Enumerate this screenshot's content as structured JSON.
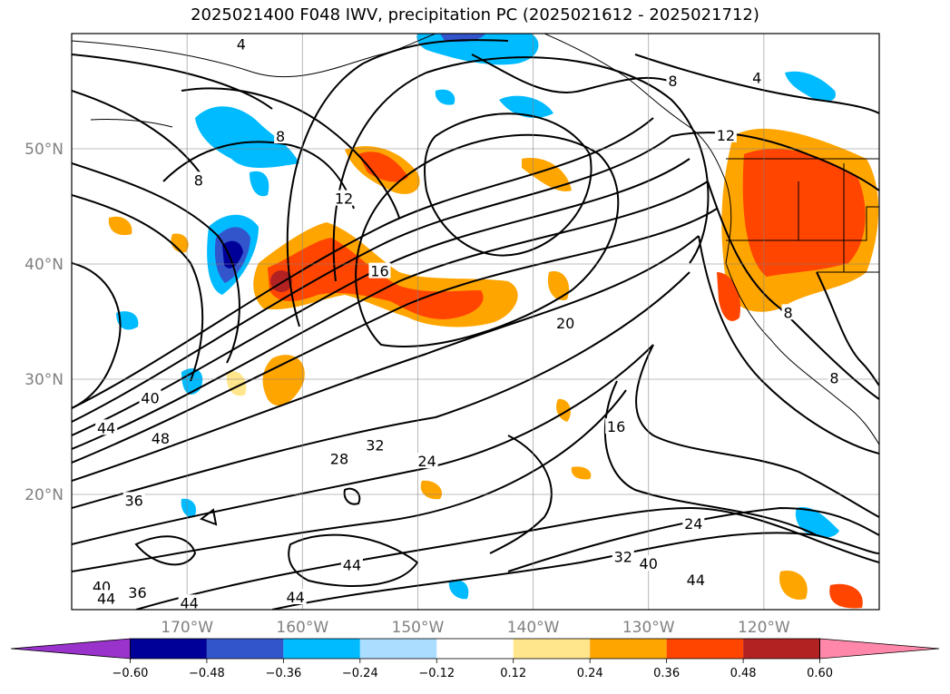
{
  "chart_data": {
    "type": "heatmap",
    "title": "2025021400 F048 IWV, precipitation PC (2025021612 - 2025021712)",
    "xlabel": "",
    "ylabel": "",
    "xlim": [
      -180,
      -110
    ],
    "ylim": [
      10,
      60
    ],
    "grid": true,
    "x_ticks": [
      -170,
      -160,
      -150,
      -140,
      -130,
      -120
    ],
    "x_tick_labels": [
      "170°W",
      "160°W",
      "150°W",
      "140°W",
      "130°W",
      "120°W"
    ],
    "y_ticks": [
      20,
      30,
      40,
      50
    ],
    "y_tick_labels": [
      "20°N",
      "30°N",
      "40°N",
      "50°N"
    ],
    "colorbar": {
      "boundaries": [
        -0.6,
        -0.48,
        -0.36,
        -0.24,
        -0.12,
        0.12,
        0.24,
        0.36,
        0.48,
        0.6
      ],
      "tick_labels": [
        "−0.60",
        "−0.48",
        "−0.36",
        "−0.24",
        "−0.12",
        "0.12",
        "0.24",
        "0.36",
        "0.48",
        "0.60"
      ],
      "extend": "both",
      "colors": [
        "#9933cc",
        "#000099",
        "#3355cc",
        "#00bbff",
        "#aaddff",
        "#ffffff",
        "#ffe68c",
        "#ffa500",
        "#ff4500",
        "#b22222",
        "#ff88aa"
      ]
    },
    "contour_labels": [
      {
        "text": "4",
        "lon": -165.3,
        "lat": 59.1
      },
      {
        "text": "4",
        "lon": -120.6,
        "lat": 56.2
      },
      {
        "text": "8",
        "lon": -169.0,
        "lat": 47.3
      },
      {
        "text": "8",
        "lon": -161.9,
        "lat": 51.1
      },
      {
        "text": "8",
        "lon": -127.9,
        "lat": 55.9
      },
      {
        "text": "8",
        "lon": -117.9,
        "lat": 35.8
      },
      {
        "text": "8",
        "lon": -113.9,
        "lat": 30.1
      },
      {
        "text": "12",
        "lon": -156.4,
        "lat": 45.7
      },
      {
        "text": "12",
        "lon": -123.3,
        "lat": 51.2
      },
      {
        "text": "16",
        "lon": -153.3,
        "lat": 39.4
      },
      {
        "text": "16",
        "lon": -132.8,
        "lat": 25.9
      },
      {
        "text": "20",
        "lon": -137.2,
        "lat": 34.9
      },
      {
        "text": "24",
        "lon": -149.2,
        "lat": 22.9
      },
      {
        "text": "24",
        "lon": -126.1,
        "lat": 17.5
      },
      {
        "text": "28",
        "lon": -156.8,
        "lat": 23.1
      },
      {
        "text": "32",
        "lon": -153.7,
        "lat": 24.3
      },
      {
        "text": "32",
        "lon": -132.2,
        "lat": 14.6
      },
      {
        "text": "36",
        "lon": -174.6,
        "lat": 19.5
      },
      {
        "text": "36",
        "lon": -174.3,
        "lat": 11.5
      },
      {
        "text": "40",
        "lon": -173.2,
        "lat": 28.4
      },
      {
        "text": "40",
        "lon": -177.4,
        "lat": 12.0
      },
      {
        "text": "40",
        "lon": -130.0,
        "lat": 14.0
      },
      {
        "text": "44",
        "lon": -177.0,
        "lat": 25.8
      },
      {
        "text": "44",
        "lon": -177.0,
        "lat": 11.0
      },
      {
        "text": "44",
        "lon": -169.8,
        "lat": 10.6
      },
      {
        "text": "44",
        "lon": -155.7,
        "lat": 13.9
      },
      {
        "text": "44",
        "lon": -160.6,
        "lat": 11.1
      },
      {
        "text": "44",
        "lon": -125.9,
        "lat": 12.6
      },
      {
        "text": "48",
        "lon": -172.3,
        "lat": 24.9
      }
    ]
  }
}
